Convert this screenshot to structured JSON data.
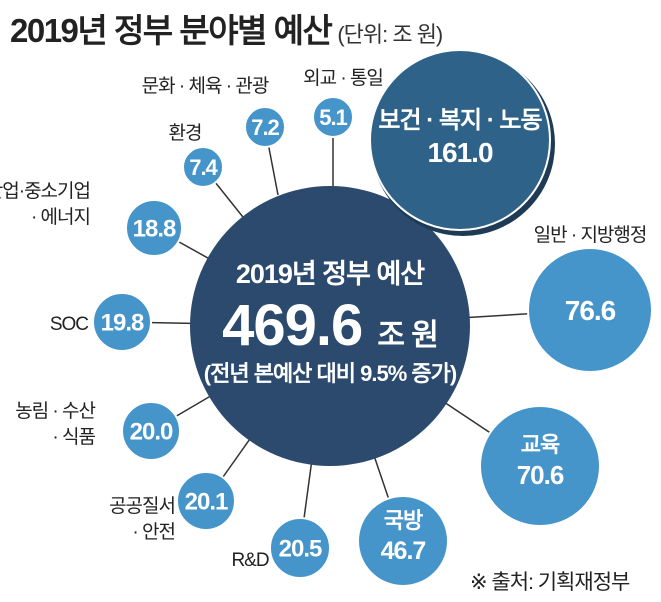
{
  "chart_data": {
    "type": "bubble",
    "title": "2019년 정부 분야별 예산",
    "unit": "(단위: 조 원)",
    "total": {
      "label": "2019년 정부 예산",
      "value": "469.6",
      "unit": "조 원",
      "note": "(전년 본예산 대비 9.5% 증가)"
    },
    "categories": [
      {
        "name": [
          "보건 · 복지 · 노동"
        ],
        "value": 161.0,
        "label_inside": true
      },
      {
        "name": [
          "일반 · 지방행정"
        ],
        "value": 76.6
      },
      {
        "name": [
          "교육"
        ],
        "value": 70.6,
        "label_inside": true
      },
      {
        "name": [
          "국방"
        ],
        "value": 46.7,
        "label_inside": true
      },
      {
        "name": [
          "R&D"
        ],
        "value": 20.5
      },
      {
        "name": [
          "공공질서",
          "· 안전"
        ],
        "value": 20.1
      },
      {
        "name": [
          "농림 · 수산",
          "· 식품"
        ],
        "value": 20.0
      },
      {
        "name": [
          "SOC"
        ],
        "value": 19.8
      },
      {
        "name": [
          "산업·중소기업",
          "· 에너지"
        ],
        "value": 18.8
      },
      {
        "name": [
          "환경"
        ],
        "value": 7.4
      },
      {
        "name": [
          "문화 · 체육 · 관광"
        ],
        "value": 7.2
      },
      {
        "name": [
          "외교 · 통일"
        ],
        "value": 5.1
      }
    ],
    "colors": {
      "total": "#2b4a6d",
      "largest": "#2e6289",
      "others": "#4594ca",
      "line": "#333333"
    }
  },
  "source": "※ 출처: 기획재정부"
}
